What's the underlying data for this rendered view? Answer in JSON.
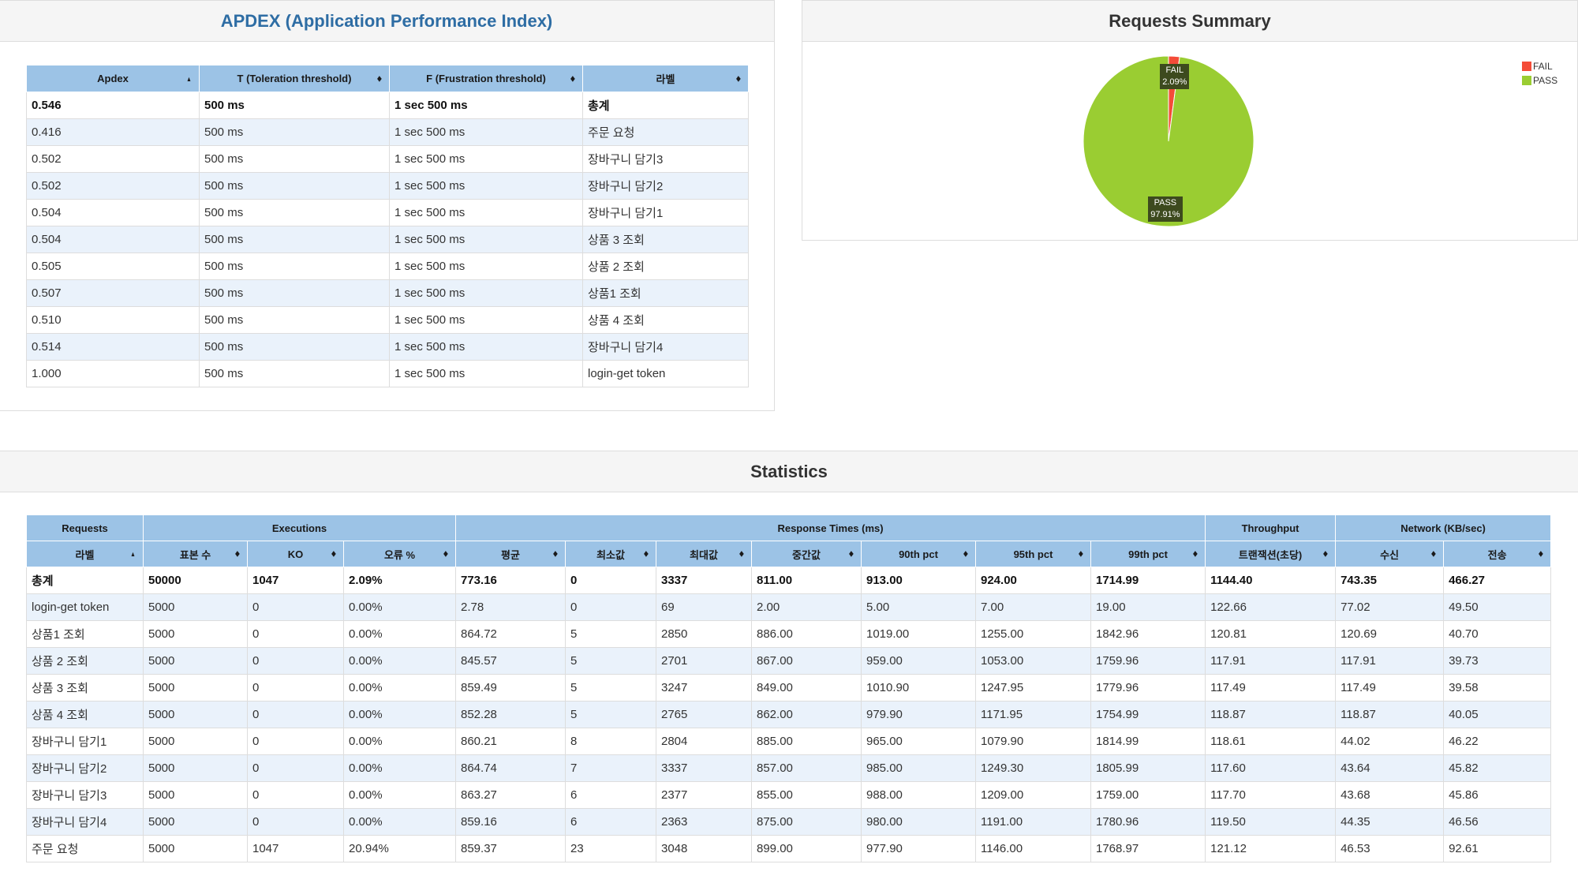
{
  "apdex": {
    "title": "APDEX (Application Performance Index)",
    "columns": [
      "Apdex",
      "T (Toleration threshold)",
      "F (Frustration threshold)",
      "라벨"
    ],
    "rows": [
      {
        "apdex": "0.546",
        "t": "500 ms",
        "f": "1 sec 500 ms",
        "label": "총계"
      },
      {
        "apdex": "0.416",
        "t": "500 ms",
        "f": "1 sec 500 ms",
        "label": "주문 요청"
      },
      {
        "apdex": "0.502",
        "t": "500 ms",
        "f": "1 sec 500 ms",
        "label": "장바구니 담기3"
      },
      {
        "apdex": "0.502",
        "t": "500 ms",
        "f": "1 sec 500 ms",
        "label": "장바구니 담기2"
      },
      {
        "apdex": "0.504",
        "t": "500 ms",
        "f": "1 sec 500 ms",
        "label": "장바구니 담기1"
      },
      {
        "apdex": "0.504",
        "t": "500 ms",
        "f": "1 sec 500 ms",
        "label": "상품 3 조회"
      },
      {
        "apdex": "0.505",
        "t": "500 ms",
        "f": "1 sec 500 ms",
        "label": "상품 2 조회"
      },
      {
        "apdex": "0.507",
        "t": "500 ms",
        "f": "1 sec 500 ms",
        "label": "상품1 조회"
      },
      {
        "apdex": "0.510",
        "t": "500 ms",
        "f": "1 sec 500 ms",
        "label": "상품 4 조회"
      },
      {
        "apdex": "0.514",
        "t": "500 ms",
        "f": "1 sec 500 ms",
        "label": "장바구니 담기4"
      },
      {
        "apdex": "1.000",
        "t": "500 ms",
        "f": "1 sec 500 ms",
        "label": "login-get token"
      }
    ]
  },
  "summary": {
    "title": "Requests Summary",
    "chart_data": {
      "type": "pie",
      "title": "Requests Summary",
      "slices": [
        {
          "name": "FAIL",
          "value": 2.09,
          "label": "FAIL",
          "pct_label": "2.09%",
          "color": "#f44c38"
        },
        {
          "name": "PASS",
          "value": 97.91,
          "label": "PASS",
          "pct_label": "97.91%",
          "color": "#9acd32"
        }
      ],
      "legend": [
        "FAIL",
        "PASS"
      ],
      "legend_position": "top-right"
    }
  },
  "statistics": {
    "title": "Statistics",
    "groups": [
      "Requests",
      "Executions",
      "Response Times (ms)",
      "Throughput",
      "Network (KB/sec)"
    ],
    "columns": [
      "라벨",
      "표본 수",
      "KO",
      "오류 %",
      "평균",
      "최소값",
      "최대값",
      "중간값",
      "90th pct",
      "95th pct",
      "99th pct",
      "트랜잭션(초당)",
      "수신",
      "전송"
    ],
    "rows": [
      [
        "총계",
        "50000",
        "1047",
        "2.09%",
        "773.16",
        "0",
        "3337",
        "811.00",
        "913.00",
        "924.00",
        "1714.99",
        "1144.40",
        "743.35",
        "466.27"
      ],
      [
        "login-get token",
        "5000",
        "0",
        "0.00%",
        "2.78",
        "0",
        "69",
        "2.00",
        "5.00",
        "7.00",
        "19.00",
        "122.66",
        "77.02",
        "49.50"
      ],
      [
        "상품1 조회",
        "5000",
        "0",
        "0.00%",
        "864.72",
        "5",
        "2850",
        "886.00",
        "1019.00",
        "1255.00",
        "1842.96",
        "120.81",
        "120.69",
        "40.70"
      ],
      [
        "상품 2 조회",
        "5000",
        "0",
        "0.00%",
        "845.57",
        "5",
        "2701",
        "867.00",
        "959.00",
        "1053.00",
        "1759.96",
        "117.91",
        "117.91",
        "39.73"
      ],
      [
        "상품 3 조회",
        "5000",
        "0",
        "0.00%",
        "859.49",
        "5",
        "3247",
        "849.00",
        "1010.90",
        "1247.95",
        "1779.96",
        "117.49",
        "117.49",
        "39.58"
      ],
      [
        "상품 4 조회",
        "5000",
        "0",
        "0.00%",
        "852.28",
        "5",
        "2765",
        "862.00",
        "979.90",
        "1171.95",
        "1754.99",
        "118.87",
        "118.87",
        "40.05"
      ],
      [
        "장바구니 담기1",
        "5000",
        "0",
        "0.00%",
        "860.21",
        "8",
        "2804",
        "885.00",
        "965.00",
        "1079.90",
        "1814.99",
        "118.61",
        "44.02",
        "46.22"
      ],
      [
        "장바구니 담기2",
        "5000",
        "0",
        "0.00%",
        "864.74",
        "7",
        "3337",
        "857.00",
        "985.00",
        "1249.30",
        "1805.99",
        "117.60",
        "43.64",
        "45.82"
      ],
      [
        "장바구니 담기3",
        "5000",
        "0",
        "0.00%",
        "863.27",
        "6",
        "2377",
        "855.00",
        "988.00",
        "1209.00",
        "1759.00",
        "117.70",
        "43.68",
        "45.86"
      ],
      [
        "장바구니 담기4",
        "5000",
        "0",
        "0.00%",
        "859.16",
        "6",
        "2363",
        "875.00",
        "980.00",
        "1191.00",
        "1780.96",
        "119.50",
        "44.35",
        "46.56"
      ],
      [
        "주문 요청",
        "5000",
        "1047",
        "20.94%",
        "859.37",
        "23",
        "3048",
        "899.00",
        "977.90",
        "1146.00",
        "1768.97",
        "121.12",
        "46.53",
        "92.61"
      ]
    ]
  }
}
